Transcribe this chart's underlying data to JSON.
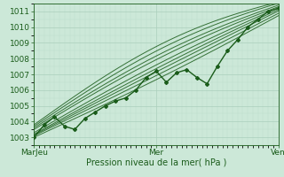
{
  "xlabel": "Pression niveau de la mer( hPa )",
  "xlim": [
    0,
    96
  ],
  "ylim": [
    1002.5,
    1011.5
  ],
  "yticks": [
    1003,
    1004,
    1005,
    1006,
    1007,
    1008,
    1009,
    1010,
    1011
  ],
  "xtick_positions": [
    0,
    48,
    96
  ],
  "xtick_labels": [
    "MarJeu",
    "Mer",
    "Ven"
  ],
  "bg_color": "#cce8d8",
  "grid_major_color": "#aacfbc",
  "grid_minor_color": "#bbdcca",
  "line_color": "#1a5c1a",
  "figsize": [
    3.2,
    2.0
  ],
  "dpi": 100
}
